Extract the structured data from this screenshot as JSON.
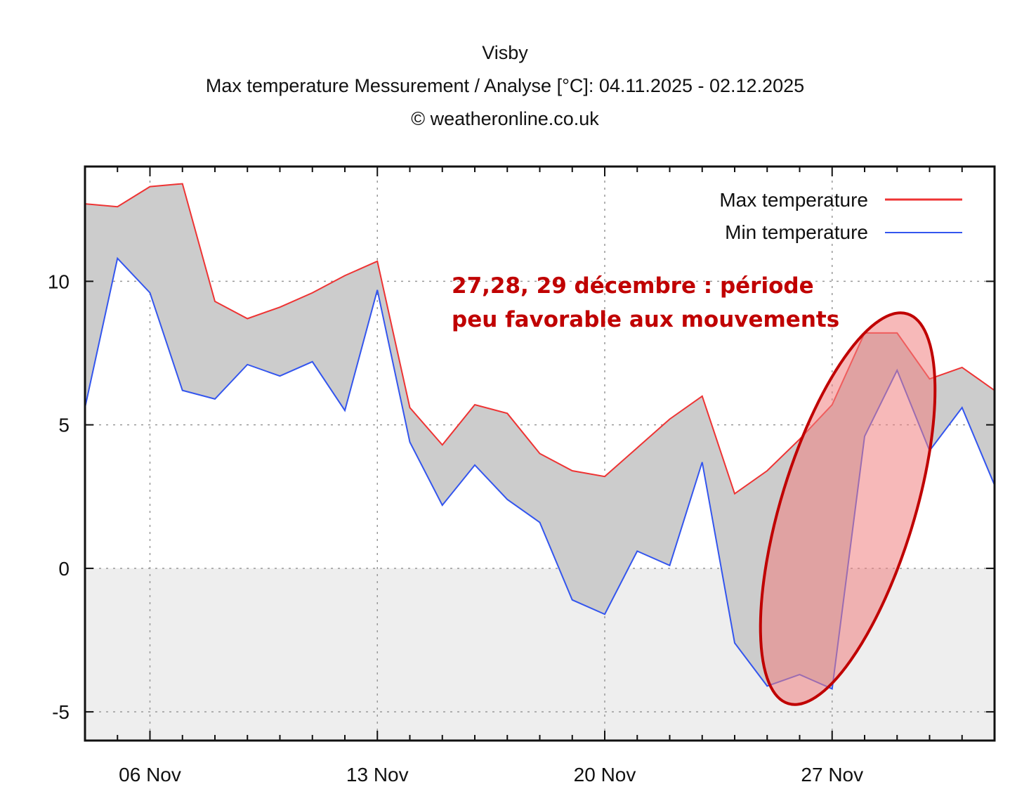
{
  "chart_data": {
    "type": "area",
    "title": "Visby",
    "subtitle": "Max temperature Messurement / Analyse [°C]: 04.11.2025 - 02.12.2025",
    "credit": "© weatheronline.co.uk",
    "xlabel": "",
    "ylabel": "",
    "x": [
      "04.11",
      "05.11",
      "06.11",
      "07.11",
      "08.11",
      "09.11",
      "10.11",
      "11.11",
      "12.11",
      "13.11",
      "14.11",
      "15.11",
      "16.11",
      "17.11",
      "18.11",
      "19.11",
      "20.11",
      "21.11",
      "22.11",
      "23.11",
      "24.11",
      "25.11",
      "26.11",
      "27.11",
      "28.11",
      "29.11",
      "30.11",
      "01.12",
      "02.12"
    ],
    "xlim": [
      0,
      28
    ],
    "ylim": [
      -6,
      14
    ],
    "yticks": [
      -5,
      0,
      5,
      10
    ],
    "ytick_labels": [
      "-5",
      "0",
      "5",
      "10"
    ],
    "xticks": [
      2,
      9,
      16,
      23
    ],
    "xtick_labels": [
      "06 Nov",
      "13 Nov",
      "20 Nov",
      "27 Nov"
    ],
    "grid": true,
    "series": [
      {
        "name": "Max temperature",
        "color": "#ee3333",
        "values": [
          12.7,
          12.6,
          13.3,
          13.4,
          9.3,
          8.7,
          9.1,
          9.6,
          10.2,
          10.7,
          5.6,
          4.3,
          5.7,
          5.4,
          4.0,
          3.4,
          3.2,
          4.2,
          5.2,
          6.0,
          2.6,
          3.4,
          4.5,
          5.7,
          8.2,
          8.2,
          6.6,
          7.0,
          6.2
        ]
      },
      {
        "name": "Min temperature",
        "color": "#3355ee",
        "values": [
          5.6,
          10.8,
          9.6,
          6.2,
          5.9,
          7.1,
          6.7,
          7.2,
          5.5,
          9.7,
          4.4,
          2.2,
          3.6,
          2.4,
          1.6,
          -1.1,
          -1.6,
          0.6,
          0.1,
          3.7,
          -2.6,
          -4.1,
          -3.7,
          -4.2,
          4.6,
          6.9,
          4.1,
          5.6,
          2.9
        ]
      }
    ],
    "fill_between_color": "#cccccc",
    "below_zero_background": "#eeeeee",
    "legend_position": "top-right",
    "annotation": {
      "lines": [
        "27,28, 29 décembre : période",
        "peu favorable aux mouvements"
      ],
      "color": "#c00000",
      "highlight_fill": "#f08080",
      "highlight_stroke": "#c00000"
    }
  }
}
